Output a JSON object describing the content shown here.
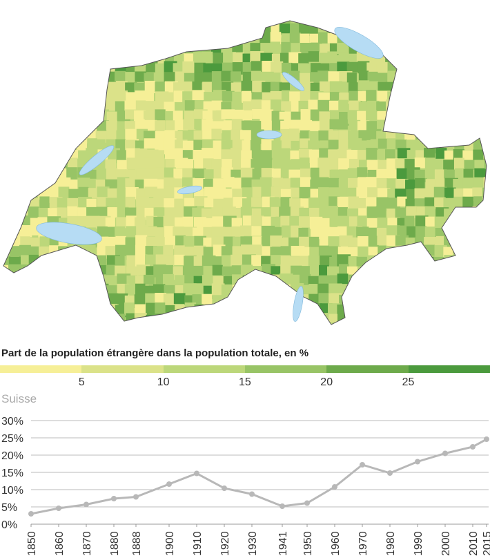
{
  "legend": {
    "title": "Part de la population étrangère dans la population totale, en %",
    "colors": [
      "#f6ef97",
      "#dbe289",
      "#bcd77a",
      "#98c466",
      "#6daa4b",
      "#4b9a3d"
    ],
    "ticks": [
      "5",
      "10",
      "15",
      "20",
      "25"
    ]
  },
  "map": {
    "lake_color": "#b6dcf4",
    "border_color": "#555555"
  },
  "chart_data": {
    "type": "line",
    "title": "Suisse",
    "x": [
      1850,
      1860,
      1870,
      1880,
      1888,
      1900,
      1910,
      1920,
      1930,
      1941,
      1950,
      1960,
      1970,
      1980,
      1990,
      2000,
      2010,
      2015
    ],
    "x_tick_labels": [
      "1850",
      "1860",
      "1870",
      "1880",
      "1888",
      "1900",
      "1910",
      "1920",
      "1930",
      "1941",
      "1950",
      "1960",
      "1970",
      "1980",
      "1990",
      "2000",
      "2010",
      "2015"
    ],
    "values": [
      3.0,
      4.6,
      5.7,
      7.4,
      7.9,
      11.6,
      14.7,
      10.4,
      8.7,
      5.2,
      6.1,
      10.8,
      17.2,
      14.8,
      18.1,
      20.5,
      22.4,
      24.6
    ],
    "y_ticks": [
      "0%",
      "5%",
      "10%",
      "15%",
      "20%",
      "25%",
      "30%"
    ],
    "ylim": [
      0,
      30
    ],
    "xlim": [
      1850,
      2015
    ],
    "grid": true,
    "line_color": "#b8b8b8"
  }
}
